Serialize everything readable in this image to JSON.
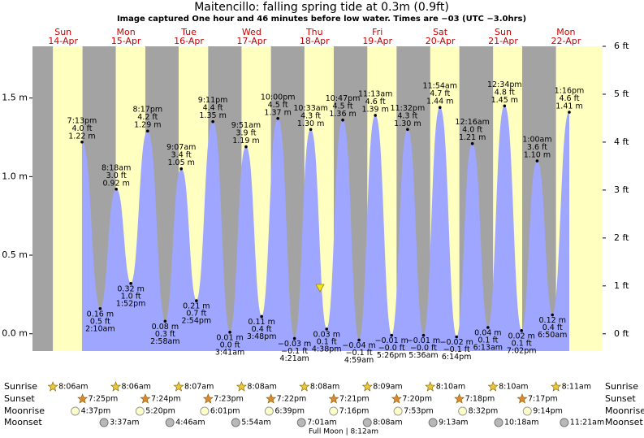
{
  "header": {
    "title": "Maitencillo: falling  spring tide at 0.3m (0.9ft)",
    "subtitle": "Image captured One hour and 46 minutes before low water. Times are −03 (UTC −3.0hrs)"
  },
  "chart_data": {
    "type": "area",
    "ylim": [
      -0.11,
      1.829
    ],
    "yticks": [
      {
        "value": 0.0,
        "label": "0.0 m"
      },
      {
        "value": 0.5,
        "label": "0.5 m"
      },
      {
        "value": 1.0,
        "label": "1.0 m"
      },
      {
        "value": 1.5,
        "label": "1.5 m"
      }
    ],
    "y2lim": [
      -0.36,
      6
    ],
    "y2ticks": [
      {
        "value": 0,
        "label": "0 ft"
      },
      {
        "value": 1,
        "label": "1 ft"
      },
      {
        "value": 2,
        "label": "2 ft"
      },
      {
        "value": 3,
        "label": "3 ft"
      },
      {
        "value": 4,
        "label": "4 ft"
      },
      {
        "value": 5,
        "label": "5 ft"
      },
      {
        "value": 6,
        "label": "6 ft"
      }
    ],
    "colors": {
      "water": "#9ea6ff",
      "day": "#ffffc0",
      "night": "#a3a3a3"
    },
    "row_labels": [
      "Sunrise",
      "Sunset",
      "Moonrise",
      "Moonset"
    ],
    "moon_phase": "Full Moon | 8:12am",
    "days": [
      {
        "weekday": "Sun",
        "date": "14-Apr",
        "sunrise": "8:06am",
        "sunset": "7:25pm",
        "moonrise": "4:37pm",
        "moonset": null,
        "tides": [
          {
            "time": "7:13pm",
            "height_m": 1.22,
            "label_m": "1.22 m",
            "height_ft": 4.0,
            "label_ft": "4.0 ft"
          }
        ]
      },
      {
        "weekday": "Mon",
        "date": "15-Apr",
        "sunrise": "8:06am",
        "sunset": "7:24pm",
        "moonrise": "5:20pm",
        "moonset": "3:37am",
        "tides": [
          {
            "time": "2:10am",
            "height_m": 0.16,
            "label_m": "0.16 m",
            "height_ft": 0.5,
            "label_ft": "0.5 ft"
          },
          {
            "time": "8:18am",
            "height_m": 0.92,
            "label_m": "0.92 m",
            "height_ft": 3.0,
            "label_ft": "3.0 ft"
          },
          {
            "time": "1:52pm",
            "height_m": 0.32,
            "label_m": "0.32 m",
            "height_ft": 1.0,
            "label_ft": "1.0 ft"
          },
          {
            "time": "8:17pm",
            "height_m": 1.29,
            "label_m": "1.29 m",
            "height_ft": 4.2,
            "label_ft": "4.2 ft"
          }
        ]
      },
      {
        "weekday": "Tue",
        "date": "16-Apr",
        "sunrise": "8:07am",
        "sunset": "7:23pm",
        "moonrise": "6:01pm",
        "moonset": "4:46am",
        "tides": [
          {
            "time": "2:58am",
            "height_m": 0.08,
            "label_m": "0.08 m",
            "height_ft": 0.3,
            "label_ft": "0.3 ft"
          },
          {
            "time": "9:07am",
            "height_m": 1.05,
            "label_m": "1.05 m",
            "height_ft": 3.4,
            "label_ft": "3.4 ft"
          },
          {
            "time": "2:54pm",
            "height_m": 0.21,
            "label_m": "0.21 m",
            "height_ft": 0.7,
            "label_ft": "0.7 ft"
          },
          {
            "time": "9:11pm",
            "height_m": 1.35,
            "label_m": "1.35 m",
            "height_ft": 4.4,
            "label_ft": "4.4 ft"
          }
        ]
      },
      {
        "weekday": "Wed",
        "date": "17-Apr",
        "sunrise": "8:08am",
        "sunset": "7:22pm",
        "moonrise": "6:39pm",
        "moonset": "5:54am",
        "tides": [
          {
            "time": "3:41am",
            "height_m": 0.01,
            "label_m": "0.01 m",
            "height_ft": 0.0,
            "label_ft": "0.0 ft"
          },
          {
            "time": "9:51am",
            "height_m": 1.19,
            "label_m": "1.19 m",
            "height_ft": 3.9,
            "label_ft": "3.9 ft"
          },
          {
            "time": "3:48pm",
            "height_m": 0.11,
            "label_m": "0.11 m",
            "height_ft": 0.4,
            "label_ft": "0.4 ft"
          },
          {
            "time": "10:00pm",
            "height_m": 1.37,
            "label_m": "1.37 m",
            "height_ft": 4.5,
            "label_ft": "4.5 ft"
          }
        ]
      },
      {
        "weekday": "Thu",
        "date": "18-Apr",
        "sunrise": "8:08am",
        "sunset": "7:21pm",
        "moonrise": "7:16pm",
        "moonset": "7:01am",
        "tides": [
          {
            "time": "4:21am",
            "height_m": -0.03,
            "label_m": "−0.03 m",
            "height_ft": -0.1,
            "label_ft": "−0.1 ft"
          },
          {
            "time": "10:33am",
            "height_m": 1.3,
            "label_m": "1.30 m",
            "height_ft": 4.3,
            "label_ft": "4.3 ft"
          },
          {
            "time": "4:38pm",
            "height_m": 0.03,
            "label_m": "0.03 m",
            "height_ft": 0.1,
            "label_ft": "0.1 ft"
          },
          {
            "time": "10:47pm",
            "height_m": 1.36,
            "label_m": "1.36 m",
            "height_ft": 4.5,
            "label_ft": "4.5 ft"
          }
        ]
      },
      {
        "weekday": "Fri",
        "date": "19-Apr",
        "sunrise": "8:09am",
        "sunset": "7:20pm",
        "moonrise": "7:53pm",
        "moonset": "8:08am",
        "tides": [
          {
            "time": "4:59am",
            "height_m": -0.04,
            "label_m": "−0.04 m",
            "height_ft": -0.1,
            "label_ft": "−0.1 ft"
          },
          {
            "time": "11:13am",
            "height_m": 1.39,
            "label_m": "1.39 m",
            "height_ft": 4.6,
            "label_ft": "4.6 ft"
          },
          {
            "time": "5:26pm",
            "height_m": -0.01,
            "label_m": "−0.01 m",
            "height_ft": -0.0,
            "label_ft": "−0.0 ft"
          },
          {
            "time": "11:32pm",
            "height_m": 1.3,
            "label_m": "1.30 m",
            "height_ft": 4.3,
            "label_ft": "4.3 ft"
          }
        ]
      },
      {
        "weekday": "Sat",
        "date": "20-Apr",
        "sunrise": "8:10am",
        "sunset": "7:18pm",
        "moonrise": "8:32pm",
        "moonset": "9:13am",
        "tides": [
          {
            "time": "5:36am",
            "height_m": -0.01,
            "label_m": "−0.01 m",
            "height_ft": -0.0,
            "label_ft": "−0.0 ft"
          },
          {
            "time": "11:54am",
            "height_m": 1.44,
            "label_m": "1.44 m",
            "height_ft": 4.7,
            "label_ft": "4.7 ft"
          },
          {
            "time": "6:14pm",
            "height_m": -0.02,
            "label_m": "−0.02 m",
            "height_ft": -0.1,
            "label_ft": "−0.1 ft"
          }
        ]
      },
      {
        "weekday": "Sun",
        "date": "21-Apr",
        "sunrise": "8:10am",
        "sunset": "7:17pm",
        "moonrise": "9:14pm",
        "moonset": "10:18am",
        "tides": [
          {
            "time": "12:16am",
            "height_m": 1.21,
            "label_m": "1.21 m",
            "height_ft": 4.0,
            "label_ft": "4.0 ft"
          },
          {
            "time": "6:13am",
            "height_m": 0.04,
            "label_m": "0.04 m",
            "height_ft": 0.1,
            "label_ft": "0.1 ft"
          },
          {
            "time": "12:34pm",
            "height_m": 1.45,
            "label_m": "1.45 m",
            "height_ft": 4.8,
            "label_ft": "4.8 ft"
          },
          {
            "time": "7:02pm",
            "height_m": 0.02,
            "label_m": "0.02 m",
            "height_ft": 0.1,
            "label_ft": "0.1 ft"
          }
        ]
      },
      {
        "weekday": "Mon",
        "date": "22-Apr",
        "sunrise": "8:11am",
        "sunset": null,
        "moonrise": null,
        "moonset": "11:21am",
        "tides": [
          {
            "time": "1:00am",
            "height_m": 1.1,
            "label_m": "1.10 m",
            "height_ft": 3.6,
            "label_ft": "3.6 ft"
          },
          {
            "time": "6:50am",
            "height_m": 0.12,
            "label_m": "0.12 m",
            "height_ft": 0.4,
            "label_ft": "0.4 ft"
          },
          {
            "time": "1:16pm",
            "height_m": 1.41,
            "label_m": "1.41 m",
            "height_ft": 4.6,
            "label_ft": "4.6 ft"
          }
        ]
      }
    ]
  }
}
